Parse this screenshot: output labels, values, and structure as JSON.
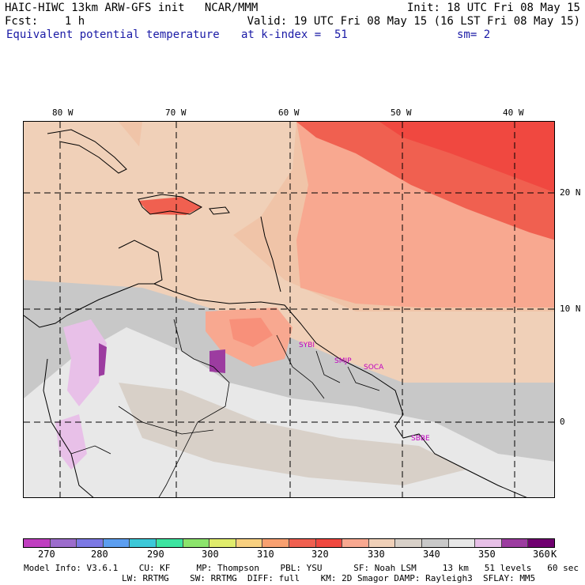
{
  "header": {
    "line1_left": "HAIC-HIWC 13km ARW-GFS init   NCAR/MMM",
    "line1_right": "Init: 18 UTC Fri 08 May 15",
    "line2_left": "Fcst:    1 h",
    "line2_right": "Valid: 19 UTC Fri 08 May 15 (16 LST Fri 08 May 15)",
    "field": "Equivalent potential temperature",
    "level": "at k-index =  51",
    "smooth": "sm= 2"
  },
  "axes": {
    "lon_labels": [
      "80 W",
      "70 W",
      "60 W",
      "50 W",
      "40 W"
    ],
    "lat_labels": [
      "20 N",
      "10 N",
      "0"
    ]
  },
  "stations": [
    "SYBI",
    "SMJP",
    "SOCA",
    "SBBE"
  ],
  "colorbar": {
    "labels": [
      "270",
      "280",
      "290",
      "300",
      "310",
      "320",
      "330",
      "340",
      "350",
      "360",
      "K"
    ],
    "colors": [
      "#c03ec0",
      "#9c6ccc",
      "#7c78e4",
      "#5c9ef0",
      "#3cc8d8",
      "#3ce4a0",
      "#8ce46c",
      "#e0ec6c",
      "#f8d080",
      "#f8a070",
      "#f06050",
      "#f04840",
      "#f8a890",
      "#f0d0b8",
      "#d8d0c8",
      "#c8c8c8",
      "#e8e8e8",
      "#e8c0e8",
      "#9c3ca0",
      "#700070"
    ]
  },
  "footer": {
    "line1": "Model Info: V3.6.1    CU: KF     MP: Thompson    PBL: YSU      SF: Noah LSM     13 km   51 levels   60 sec",
    "line2": "LW: RRTMG    SW: RRTMG  DIFF: full    KM: 2D Smagor DAMP: Rayleigh3  SFLAY: MM5"
  }
}
